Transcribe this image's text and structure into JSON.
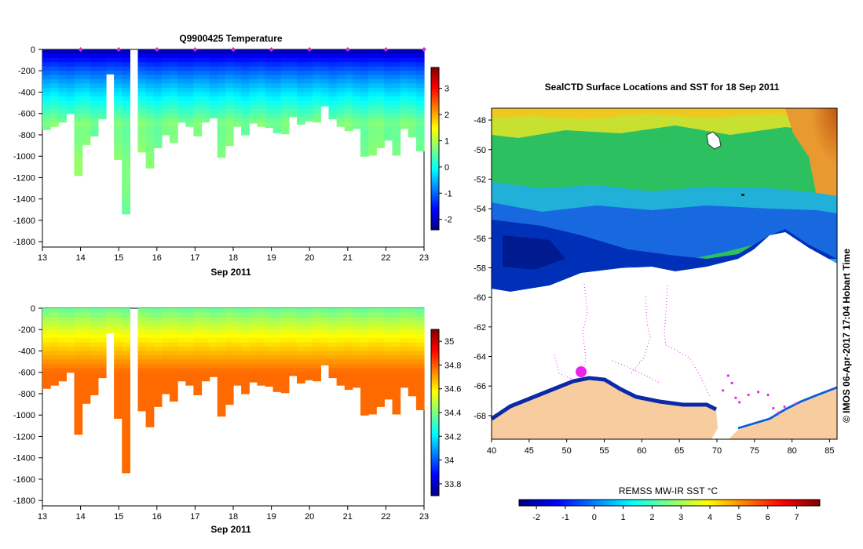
{
  "chart_data": [
    {
      "type": "heatmap",
      "title": "Q9900425  Temperature",
      "xlabel": "Sep 2011",
      "ylabel": "",
      "x_ticks": [
        "13",
        "14",
        "15",
        "16",
        "17",
        "18",
        "19",
        "20",
        "21",
        "22",
        "23"
      ],
      "xlim": [
        13,
        23
      ],
      "y_ticks": [
        "0",
        "-200",
        "-400",
        "-600",
        "-800",
        "-1000",
        "-1200",
        "-1400",
        "-1600",
        "-1800"
      ],
      "ylim": [
        -1850,
        0
      ],
      "colorbar_ticks": [
        "3",
        "2",
        "1",
        "0",
        "-1",
        "-2"
      ],
      "colorbar_range": [
        -2.4,
        3.8
      ],
      "profile_days": [
        14,
        15,
        16,
        17,
        18,
        19,
        20,
        21,
        22,
        23
      ],
      "max_depths": [
        -750,
        -720,
        -680,
        -600,
        -1180,
        -890,
        -810,
        -650,
        -230,
        -1030,
        -1540,
        -20,
        -960,
        -1110,
        -920,
        -800,
        -870,
        -680,
        -720,
        -810,
        -680,
        -640,
        -1010,
        -900,
        -720,
        -800,
        -690,
        -720,
        -730,
        -780,
        -790,
        -630,
        -700,
        -670,
        -680,
        -530,
        -650,
        -720,
        -760,
        -740,
        -1000,
        -990,
        -920,
        -850,
        -990,
        -740,
        -820,
        -950
      ],
      "surface_value": -2.2,
      "bottom_value": 0.6
    },
    {
      "type": "heatmap",
      "title": "",
      "xlabel": "Sep 2011",
      "ylabel": "",
      "x_ticks": [
        "13",
        "14",
        "15",
        "16",
        "17",
        "18",
        "19",
        "20",
        "21",
        "22",
        "23"
      ],
      "xlim": [
        13,
        23
      ],
      "y_ticks": [
        "0",
        "-200",
        "-400",
        "-600",
        "-800",
        "-1000",
        "-1200",
        "-1400",
        "-1600",
        "-1800"
      ],
      "ylim": [
        -1850,
        0
      ],
      "colorbar_ticks": [
        "35",
        "34.8",
        "34.6",
        "34.4",
        "34.2",
        "34",
        "33.8"
      ],
      "colorbar_range": [
        33.7,
        35.1
      ],
      "surface_value": 34.45,
      "bottom_value": 34.75
    },
    {
      "type": "heatmap",
      "title": "SealCTD Surface Locations and SST for 18 Sep 2011",
      "xlabel": "",
      "ylabel": "",
      "x_ticks": [
        "40",
        "45",
        "50",
        "55",
        "60",
        "65",
        "70",
        "75",
        "80",
        "85"
      ],
      "xlim": [
        40,
        86
      ],
      "y_ticks": [
        "-48",
        "-50",
        "-52",
        "-54",
        "-56",
        "-58",
        "-60",
        "-62",
        "-64",
        "-66",
        "-68"
      ],
      "ylim": [
        -69.6,
        -47.2
      ],
      "colorbar_label": "REMSS MW-IR SST °C",
      "colorbar_ticks": [
        "-2",
        "-1",
        "0",
        "1",
        "2",
        "3",
        "4",
        "5",
        "6",
        "7"
      ],
      "colorbar_range": [
        -2.6,
        7.8
      ],
      "seal_track": [
        [
          71.5,
          -65.3
        ],
        [
          72.0,
          -65.8
        ],
        [
          70.8,
          -66.3
        ],
        [
          72.5,
          -66.8
        ],
        [
          73.0,
          -67.1
        ],
        [
          74.2,
          -66.6
        ],
        [
          75.5,
          -66.4
        ],
        [
          76.8,
          -66.6
        ],
        [
          77.5,
          -67.5
        ],
        [
          78.2,
          -67.8
        ],
        [
          79.0,
          -67.4
        ],
        [
          80.5,
          -67.2
        ]
      ],
      "credit": "© IMOS 06-Apr-2017 17:04 Hobart Time"
    }
  ],
  "colors": {
    "land": "#f7cda0",
    "track": "#ee22ee",
    "profile_marker": "#cc33cc"
  }
}
